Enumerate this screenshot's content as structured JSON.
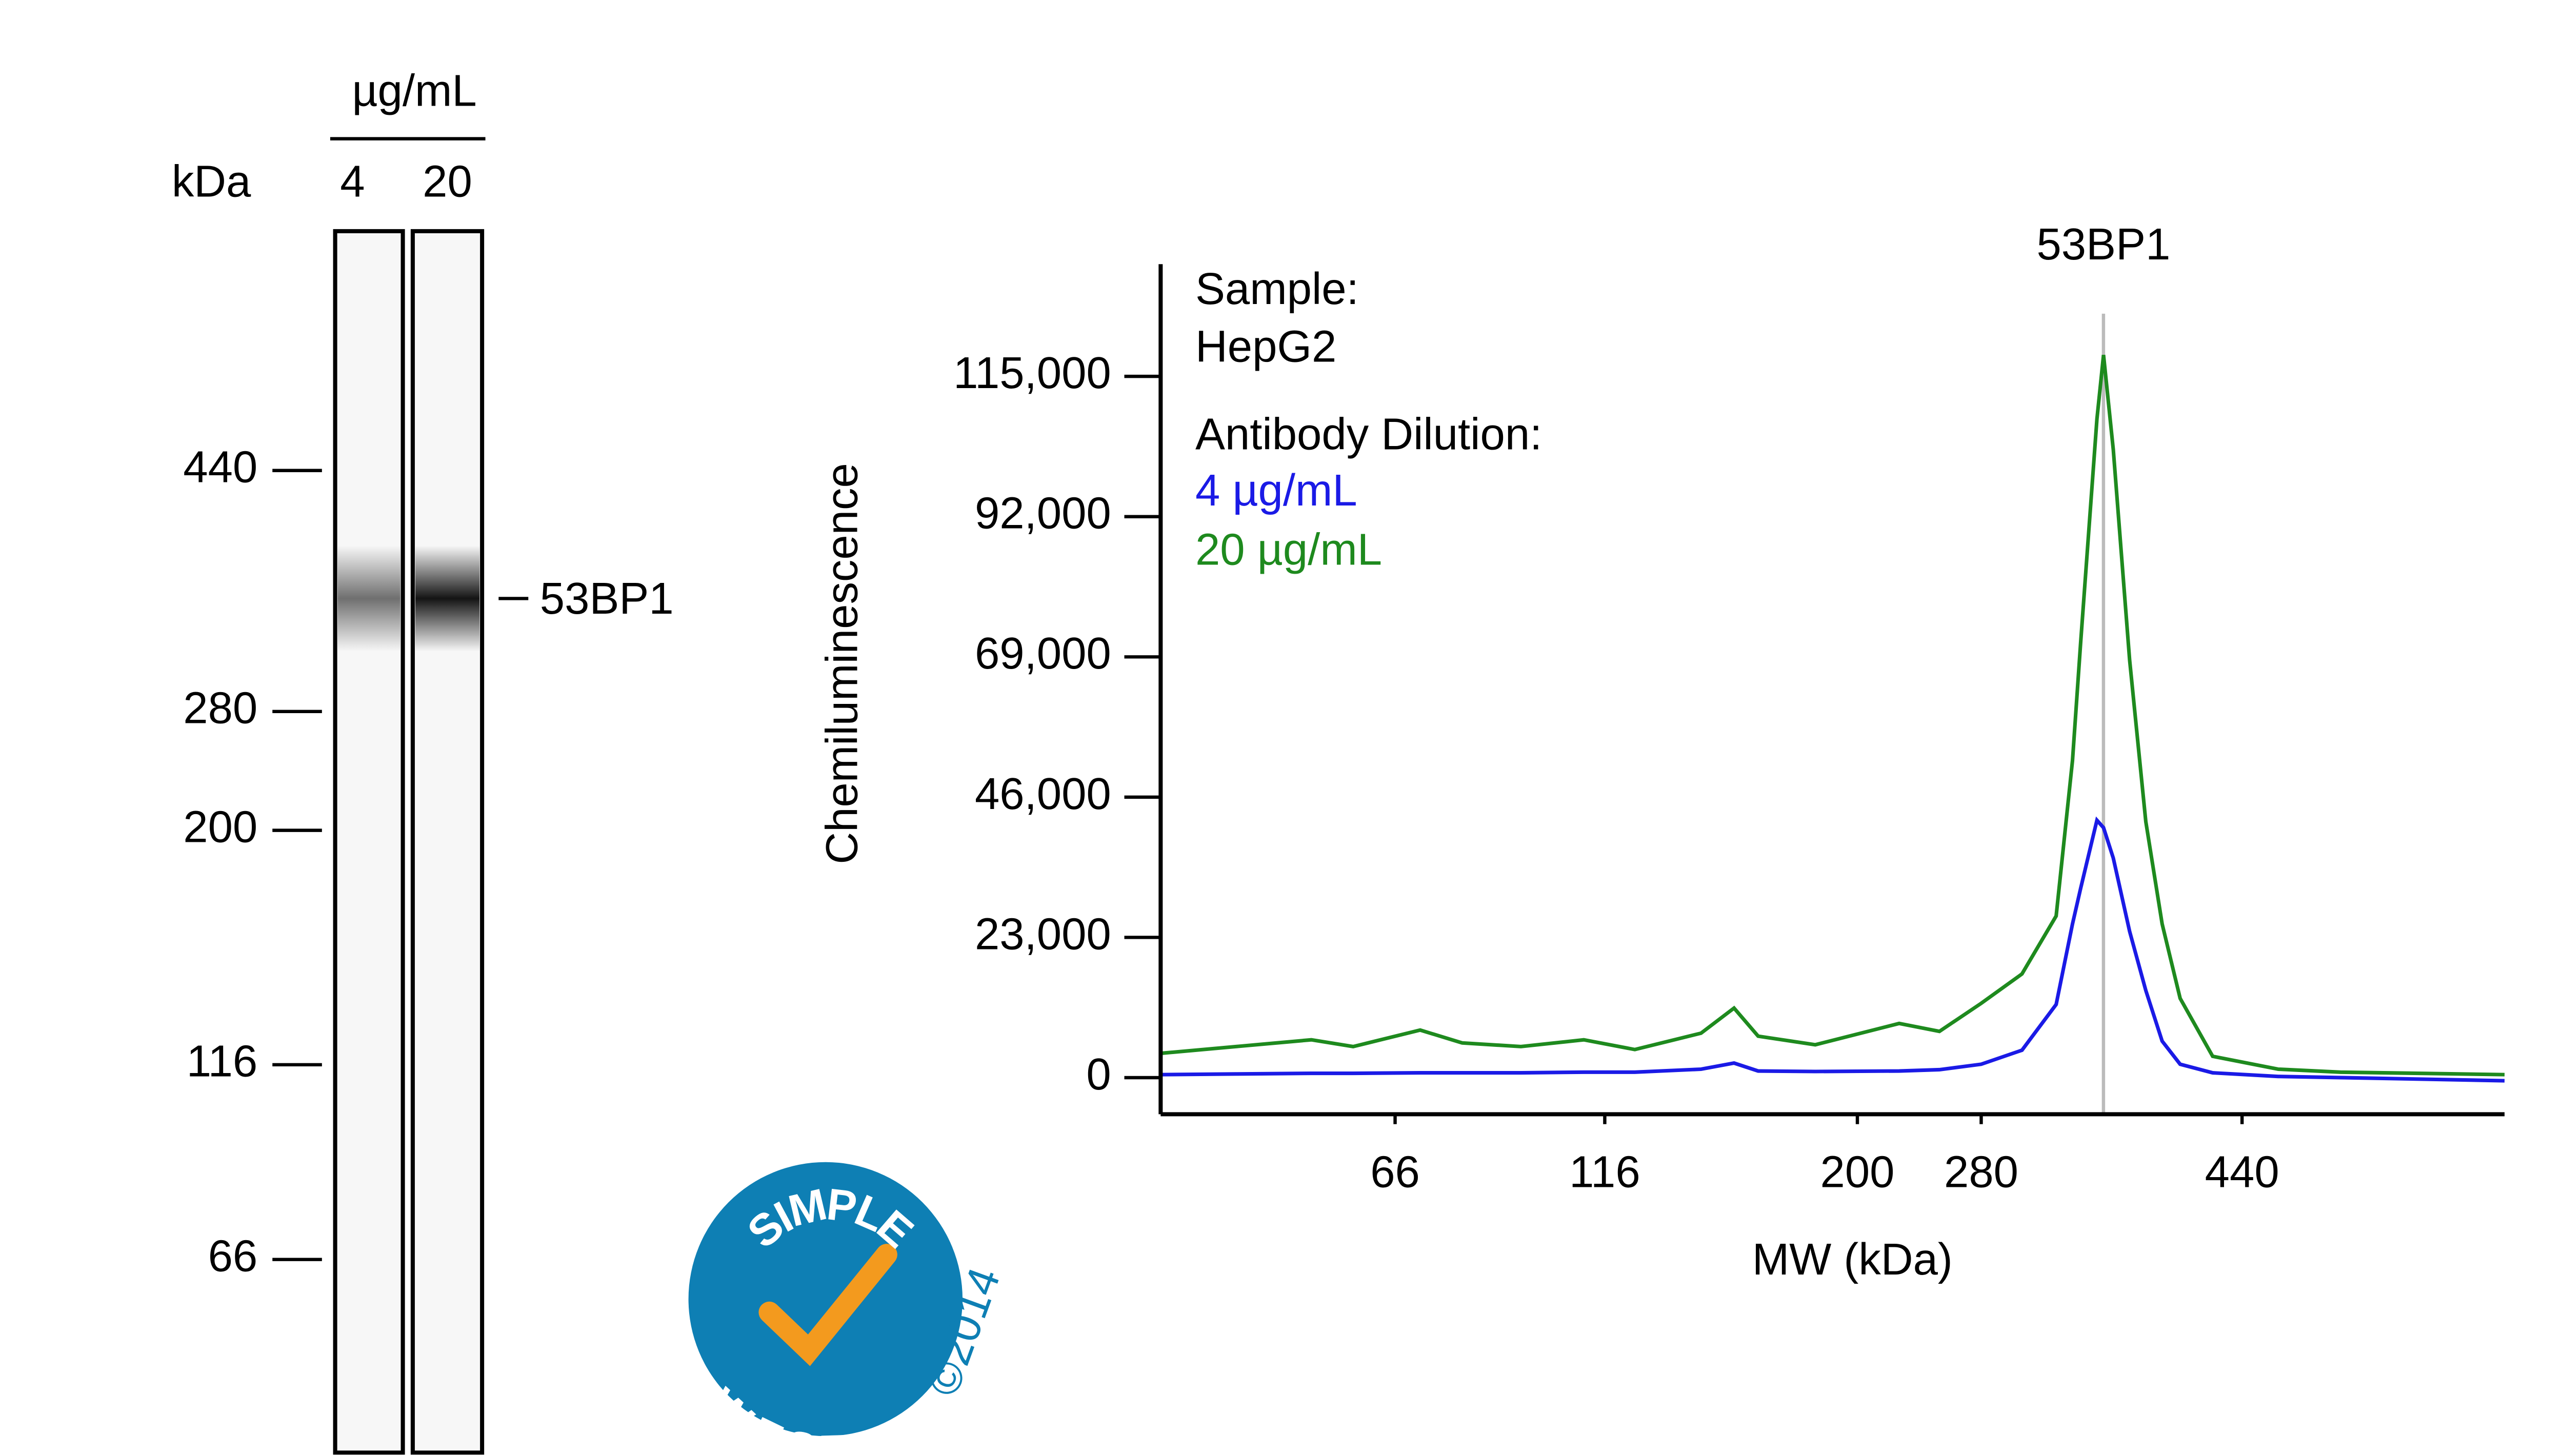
{
  "chart_data": [
    {
      "type": "line",
      "annotation": "53BP1",
      "annotation_x": 355,
      "legend": {
        "heading1": "Sample:",
        "sample": "HepG2",
        "heading2": "Antibody Dilution:"
      },
      "xlabel": "MW (kDa)",
      "ylabel": "Chemiluminescence",
      "x": [
        10,
        28,
        46,
        56,
        72,
        82,
        96,
        111,
        126,
        148,
        159,
        167,
        186,
        227,
        253,
        280,
        305,
        326,
        336,
        341,
        351,
        355,
        361,
        371,
        381,
        391,
        402,
        422,
        462,
        500,
        600
      ],
      "series": [
        {
          "name": "4 µg/mL",
          "color": "#1a1ae6",
          "values": [
            500,
            600,
            700,
            700,
            800,
            800,
            800,
            900,
            900,
            1400,
            2400,
            1100,
            1000,
            1100,
            1300,
            2200,
            4500,
            12000,
            25200,
            31000,
            42200,
            41000,
            36000,
            24000,
            14300,
            6000,
            2200,
            800,
            200,
            0,
            -500
          ]
        },
        {
          "name": "20 µg/mL",
          "color": "#1e8a1e",
          "values": [
            4000,
            5100,
            6200,
            5100,
            7800,
            5700,
            5100,
            6200,
            4600,
            7300,
            11400,
            6800,
            5400,
            8900,
            7600,
            12200,
            17000,
            26500,
            52000,
            71200,
            108000,
            118500,
            103000,
            68500,
            42000,
            25200,
            13000,
            3500,
            1400,
            900,
            500
          ]
        }
      ],
      "xlim": [
        10,
        600
      ],
      "xticks": [
        66,
        116,
        200,
        280,
        440
      ],
      "ylim": [
        -6000,
        133400
      ],
      "yticks": [
        {
          "value": 0,
          "label": "0"
        },
        {
          "value": 23000,
          "label": "23,000"
        },
        {
          "value": 46000,
          "label": "46,000"
        },
        {
          "value": 69000,
          "label": "69,000"
        },
        {
          "value": 92000,
          "label": "92,000"
        },
        {
          "value": 115000,
          "label": "115,000"
        }
      ]
    },
    {
      "type": "lane",
      "title": "µg/mL",
      "ylabel": "kDa",
      "lanes": [
        "4",
        "20"
      ],
      "ylim": [
        600,
        16
      ],
      "yticks": [
        440,
        280,
        200,
        116,
        66
      ],
      "bands": [
        {
          "label": "53BP1",
          "value": 355
        }
      ]
    }
  ],
  "logo": {
    "top": "SIMPLE",
    "bottom": "WESTERN",
    "copyright": "©2014"
  }
}
